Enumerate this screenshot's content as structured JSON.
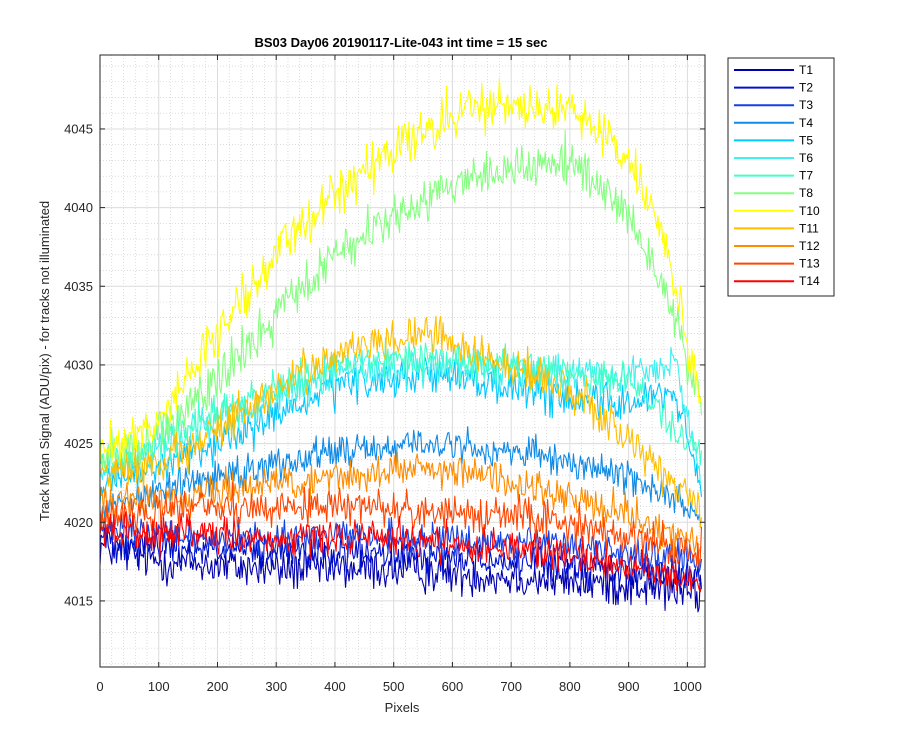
{
  "chart_data": {
    "type": "line",
    "title": "BS03 Day06 20190117-Lite-043 int time = 15 sec",
    "xlabel": "Pixels",
    "ylabel": "Track Mean Signal (ADU/pix) - for tracks not illuminated",
    "xlim": [
      0,
      1030
    ],
    "ylim": [
      4010.8,
      4049.7
    ],
    "xticks": [
      0,
      100,
      200,
      300,
      400,
      500,
      600,
      700,
      800,
      900,
      1000
    ],
    "yticks": [
      4015,
      4020,
      4025,
      4030,
      4035,
      4040,
      4045
    ],
    "grid": true,
    "minor_grid": true,
    "legend_position": "outside-top-right",
    "series": [
      {
        "name": "T1",
        "color": "#0000b0",
        "base": [
          [
            0,
            4018.5
          ],
          [
            100,
            4017.5
          ],
          [
            300,
            4017
          ],
          [
            500,
            4017
          ],
          [
            700,
            4016.5
          ],
          [
            900,
            4016
          ],
          [
            1024,
            4015.5
          ]
        ],
        "noise": 2.0
      },
      {
        "name": "T2",
        "color": "#0010d0",
        "base": [
          [
            0,
            4019
          ],
          [
            100,
            4018.5
          ],
          [
            300,
            4018
          ],
          [
            500,
            4018
          ],
          [
            700,
            4017.5
          ],
          [
            900,
            4017
          ],
          [
            1024,
            4016.5
          ]
        ],
        "noise": 1.8
      },
      {
        "name": "T3",
        "color": "#1040e8",
        "base": [
          [
            0,
            4019.5
          ],
          [
            200,
            4019
          ],
          [
            500,
            4019
          ],
          [
            800,
            4018.5
          ],
          [
            1024,
            4017.5
          ]
        ],
        "noise": 1.6
      },
      {
        "name": "T4",
        "color": "#0f8ae6",
        "base": [
          [
            0,
            4021
          ],
          [
            200,
            4023
          ],
          [
            400,
            4024.5
          ],
          [
            550,
            4025
          ],
          [
            700,
            4024.5
          ],
          [
            900,
            4023
          ],
          [
            1024,
            4020.5
          ]
        ],
        "noise": 1.6
      },
      {
        "name": "T5",
        "color": "#00c8ff",
        "base": [
          [
            0,
            4022
          ],
          [
            200,
            4025
          ],
          [
            400,
            4028.5
          ],
          [
            550,
            4029.5
          ],
          [
            700,
            4028.5
          ],
          [
            900,
            4027.5
          ],
          [
            980,
            4028.5
          ],
          [
            1024,
            4021.5
          ]
        ],
        "noise": 1.8
      },
      {
        "name": "T6",
        "color": "#3ef0f0",
        "base": [
          [
            0,
            4023
          ],
          [
            200,
            4026.5
          ],
          [
            400,
            4029.5
          ],
          [
            550,
            4030
          ],
          [
            700,
            4029.5
          ],
          [
            900,
            4029.5
          ],
          [
            980,
            4030
          ],
          [
            1024,
            4023
          ]
        ],
        "noise": 1.8
      },
      {
        "name": "T7",
        "color": "#40ffc8",
        "base": [
          [
            0,
            4023.5
          ],
          [
            200,
            4027
          ],
          [
            400,
            4030
          ],
          [
            550,
            4030.5
          ],
          [
            700,
            4030
          ],
          [
            900,
            4029
          ],
          [
            980,
            4026
          ],
          [
            1024,
            4024.5
          ]
        ],
        "noise": 1.8
      },
      {
        "name": "T8",
        "color": "#86ff80",
        "base": [
          [
            0,
            4024
          ],
          [
            100,
            4025.5
          ],
          [
            200,
            4029
          ],
          [
            300,
            4033
          ],
          [
            400,
            4037
          ],
          [
            500,
            4039.5
          ],
          [
            600,
            4041.5
          ],
          [
            700,
            4042.5
          ],
          [
            800,
            4043
          ],
          [
            900,
            4039.5
          ],
          [
            960,
            4035
          ],
          [
            1024,
            4027.5
          ]
        ],
        "noise": 2.2
      },
      {
        "name": "T10",
        "color": "#ffff00",
        "base": [
          [
            0,
            4024.5
          ],
          [
            100,
            4026.5
          ],
          [
            200,
            4032
          ],
          [
            300,
            4037
          ],
          [
            400,
            4041
          ],
          [
            500,
            4043.5
          ],
          [
            600,
            4046
          ],
          [
            700,
            4046.5
          ],
          [
            800,
            4046.5
          ],
          [
            900,
            4043
          ],
          [
            960,
            4038
          ],
          [
            1024,
            4027.5
          ]
        ],
        "noise": 2.2
      },
      {
        "name": "T11",
        "color": "#ffbf00",
        "base": [
          [
            0,
            4023
          ],
          [
            100,
            4023.5
          ],
          [
            200,
            4026
          ],
          [
            300,
            4028.5
          ],
          [
            400,
            4030.5
          ],
          [
            550,
            4032
          ],
          [
            700,
            4030
          ],
          [
            800,
            4028.5
          ],
          [
            900,
            4025
          ],
          [
            1024,
            4021
          ]
        ],
        "noise": 2.0
      },
      {
        "name": "T12",
        "color": "#ff8c00",
        "base": [
          [
            0,
            4021.5
          ],
          [
            100,
            4021.5
          ],
          [
            300,
            4022.5
          ],
          [
            550,
            4023.5
          ],
          [
            750,
            4022
          ],
          [
            900,
            4020.5
          ],
          [
            1024,
            4018.5
          ]
        ],
        "noise": 1.8
      },
      {
        "name": "T13",
        "color": "#ff4500",
        "base": [
          [
            0,
            4020.5
          ],
          [
            200,
            4021
          ],
          [
            500,
            4021
          ],
          [
            800,
            4020
          ],
          [
            1024,
            4018
          ]
        ],
        "noise": 1.8
      },
      {
        "name": "T14",
        "color": "#ff0000",
        "base": [
          [
            0,
            4019.5
          ],
          [
            200,
            4019
          ],
          [
            500,
            4019
          ],
          [
            800,
            4018
          ],
          [
            1024,
            4016
          ]
        ],
        "noise": 1.8
      }
    ]
  }
}
